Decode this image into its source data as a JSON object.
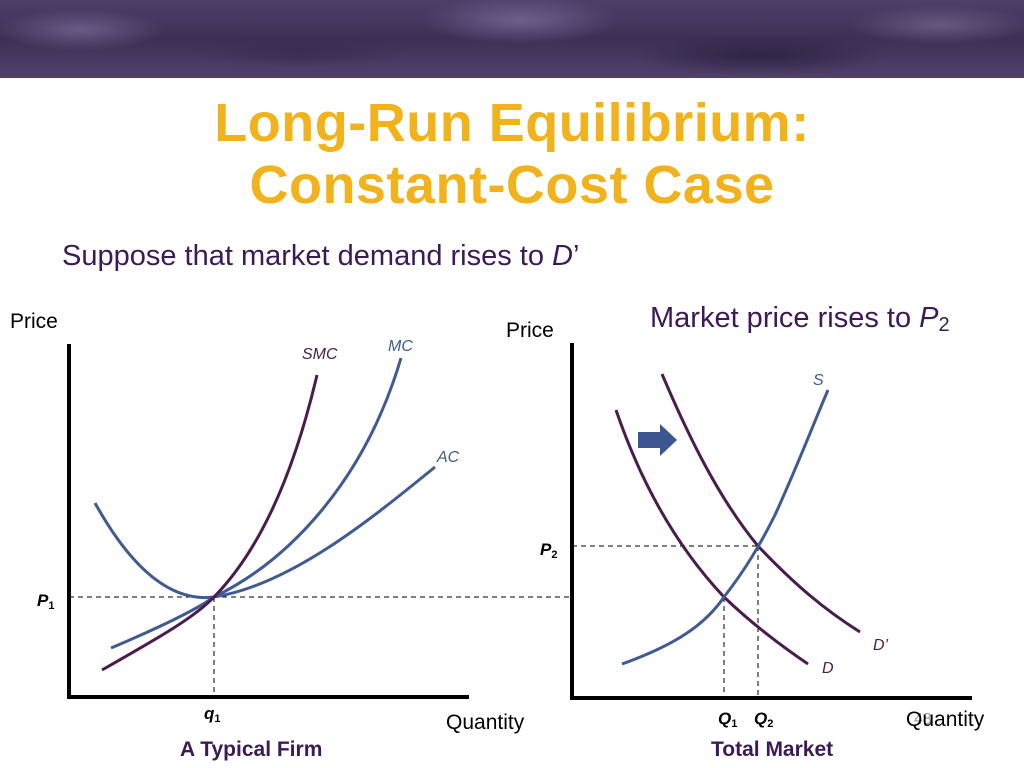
{
  "header": {
    "title_line1": "Long-Run Equilibrium:",
    "title_line2": "Constant-Cost Case"
  },
  "subtitle": {
    "text": "Suppose that market demand rises to ",
    "italic": "D",
    "suffix": "’"
  },
  "market_note": {
    "text": "Market price rises to ",
    "italic": "P",
    "sub": "2"
  },
  "firm_graph": {
    "y_axis_label": "Price",
    "x_axis_label": "Quantity",
    "caption": "A Typical Firm",
    "curves": {
      "smc": "SMC",
      "mc": "MC",
      "ac": "AC"
    },
    "price_tick": {
      "letter": "P",
      "sub": "1"
    },
    "quantity_tick": {
      "letter": "q",
      "sub": "1"
    }
  },
  "market_graph": {
    "y_axis_label": "Price",
    "x_axis_label": "Quantity",
    "caption": "Total Market",
    "curves": {
      "supply": "S",
      "demand": "D",
      "demand_new": "D’"
    },
    "price_tick": {
      "letter": "P",
      "sub": "2"
    },
    "quantity_ticks": [
      {
        "letter": "Q",
        "sub": "1"
      },
      {
        "letter": "Q",
        "sub": "2"
      }
    ]
  },
  "page_number": "48",
  "colors": {
    "title": "#f2b21c",
    "text": "#3d1a55",
    "blue_curve": "#3f5b91",
    "purple_curve": "#4a1c4e",
    "arrow": "#3b5690"
  }
}
